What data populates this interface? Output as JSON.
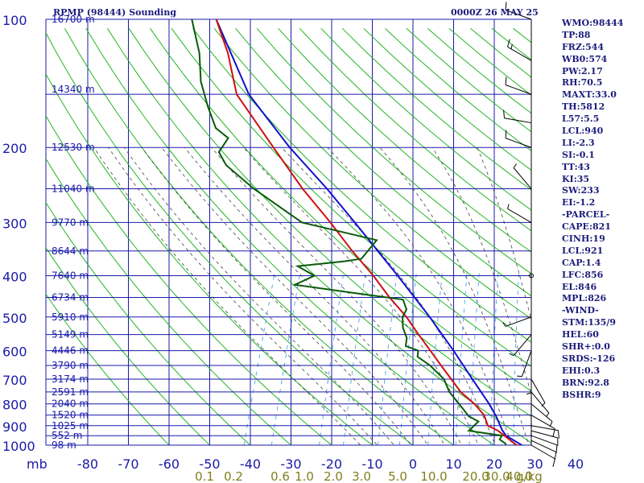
{
  "header": {
    "station": "RPMP (98444) Sounding",
    "time": "0000Z 26 MAY 25"
  },
  "indices": [
    "WMO:98444",
    "TP:88",
    "FRZ:544",
    "WB0:574",
    "PW:2.17",
    "RH:70.5",
    "MAXT:33.0",
    "TH:5812",
    "L57:5.5",
    "LCL:940",
    "LI:-2.3",
    "SI:-0.1",
    "TT:43",
    "KI:35",
    "SW:233",
    "EI:-1.2",
    "-PARCEL-",
    "CAPE:821",
    "CINH:19",
    "LCL:921",
    "CAP:1.4",
    "LFC:856",
    "EL:846",
    "MPL:826",
    "-WIND-",
    "STM:135/9",
    "HEL:60",
    "SHR+:0.0",
    "SRDS:-126",
    "EHI:0.3",
    "BRN:92.8",
    "BSHR:9"
  ],
  "chart_data": {
    "type": "skew-t",
    "pressure_ticks": [
      100,
      200,
      300,
      400,
      500,
      600,
      700,
      800,
      900,
      1000
    ],
    "pressure_label_text": [
      "100",
      "200",
      "300",
      "400",
      "500",
      "600",
      "700",
      "800",
      "900",
      "1000"
    ],
    "temp_ticks": [
      -80,
      -70,
      -60,
      -50,
      -40,
      -30,
      -20,
      -10,
      0,
      10,
      20,
      30,
      40
    ],
    "temp_label_text": [
      "-80",
      "-70",
      "-60",
      "-50",
      "-40",
      "-30",
      "-20",
      "-10",
      "0",
      "10",
      "20",
      "30",
      "40"
    ],
    "axis_unit": "mb",
    "mixing_ratio_labels": [
      "0.1",
      "0.2",
      "0.6",
      "1.0",
      "2.0",
      "3.0",
      "5.0",
      "10.0",
      "20.0",
      "30.0",
      "40.0"
    ],
    "mixing_ratio_unit": "g/kg",
    "height_labels": [
      {
        "p": 100,
        "text": "16700 m"
      },
      {
        "p": 146,
        "text": "14340 m"
      },
      {
        "p": 200,
        "text": "12530 m"
      },
      {
        "p": 250,
        "text": "11040 m"
      },
      {
        "p": 300,
        "text": "9770 m"
      },
      {
        "p": 350,
        "text": "8644 m"
      },
      {
        "p": 400,
        "text": "7640 m"
      },
      {
        "p": 450,
        "text": "6734 m"
      },
      {
        "p": 500,
        "text": "5910 m"
      },
      {
        "p": 550,
        "text": "5149 m"
      },
      {
        "p": 600,
        "text": "4446 m"
      },
      {
        "p": 650,
        "text": "3790 m"
      },
      {
        "p": 700,
        "text": "3174 m"
      },
      {
        "p": 750,
        "text": "2591 m"
      },
      {
        "p": 800,
        "text": "2040 m"
      },
      {
        "p": 850,
        "text": "1520 m"
      },
      {
        "p": 900,
        "text": "1025 m"
      },
      {
        "p": 950,
        "text": "552 m"
      },
      {
        "p": 1000,
        "text": "98 m"
      }
    ],
    "temperature_profile": [
      [
        1008,
        27.5
      ],
      [
        1000,
        25.5
      ],
      [
        950,
        21.6
      ],
      [
        925,
        19.6
      ],
      [
        900,
        16.6
      ],
      [
        850,
        14.7
      ],
      [
        800,
        11.3
      ],
      [
        750,
        6.8
      ],
      [
        700,
        3.3
      ],
      [
        650,
        -0.5
      ],
      [
        600,
        -4.5
      ],
      [
        550,
        -8.9
      ],
      [
        500,
        -13.5
      ],
      [
        450,
        -19.5
      ],
      [
        400,
        -25.5
      ],
      [
        350,
        -33.0
      ],
      [
        300,
        -41.0
      ],
      [
        250,
        -51.0
      ],
      [
        200,
        -62.0
      ],
      [
        150,
        -76.0
      ],
      [
        120,
        -82.0
      ],
      [
        100,
        -88.0
      ]
    ],
    "dewpoint_profile": [
      [
        1008,
        23.2
      ],
      [
        990,
        22.5
      ],
      [
        970,
        20.8
      ],
      [
        950,
        21.0
      ],
      [
        925,
        12.4
      ],
      [
        880,
        13.9
      ],
      [
        855,
        11.0
      ],
      [
        800,
        7.5
      ],
      [
        750,
        4.0
      ],
      [
        700,
        1.5
      ],
      [
        650,
        -3.2
      ],
      [
        620,
        -7.1
      ],
      [
        600,
        -7.5
      ],
      [
        585,
        -11.0
      ],
      [
        560,
        -11.5
      ],
      [
        530,
        -13.4
      ],
      [
        500,
        -14.5
      ],
      [
        480,
        -14.2
      ],
      [
        455,
        -16.0
      ],
      [
        440,
        -28.0
      ],
      [
        420,
        -44.0
      ],
      [
        400,
        -40.0
      ],
      [
        380,
        -45.0
      ],
      [
        370,
        -34.0
      ],
      [
        365,
        -30.0
      ],
      [
        330,
        -28.0
      ],
      [
        300,
        -48.0
      ],
      [
        250,
        -63.0
      ],
      [
        220,
        -72.0
      ],
      [
        205,
        -75.0
      ],
      [
        190,
        -74.0
      ],
      [
        180,
        -78.0
      ],
      [
        160,
        -82.0
      ],
      [
        140,
        -86.0
      ],
      [
        120,
        -89.0
      ],
      [
        100,
        -94.0
      ]
    ],
    "parcel_path": [
      [
        1008,
        27.5
      ],
      [
        950,
        22.0
      ],
      [
        921,
        20.5
      ],
      [
        856,
        17.8
      ],
      [
        800,
        14.9
      ],
      [
        700,
        8.5
      ],
      [
        600,
        1.2
      ],
      [
        500,
        -7.8
      ],
      [
        400,
        -19.5
      ],
      [
        300,
        -35.0
      ],
      [
        250,
        -45.0
      ],
      [
        200,
        -58.0
      ],
      [
        150,
        -73.0
      ],
      [
        100,
        -88.0
      ]
    ],
    "wind_barbs": [
      {
        "p": 1000,
        "dir": 120,
        "spd": 10
      },
      {
        "p": 975,
        "dir": 115,
        "spd": 10
      },
      {
        "p": 950,
        "dir": 110,
        "spd": 10
      },
      {
        "p": 925,
        "dir": 105,
        "spd": 10
      },
      {
        "p": 900,
        "dir": 100,
        "spd": 10
      },
      {
        "p": 850,
        "dir": 120,
        "spd": 10
      },
      {
        "p": 800,
        "dir": 130,
        "spd": 5
      },
      {
        "p": 750,
        "dir": 140,
        "spd": 5
      },
      {
        "p": 700,
        "dir": 150,
        "spd": 5
      },
      {
        "p": 650,
        "dir": 180,
        "spd": 5
      },
      {
        "p": 600,
        "dir": 200,
        "spd": 5
      },
      {
        "p": 550,
        "dir": 220,
        "spd": 5
      },
      {
        "p": 500,
        "dir": 250,
        "spd": 5
      },
      {
        "p": 400,
        "dir": 0,
        "spd": 0
      },
      {
        "p": 300,
        "dir": 300,
        "spd": 5
      },
      {
        "p": 250,
        "dir": 320,
        "spd": 5
      },
      {
        "p": 200,
        "dir": 290,
        "spd": 10
      },
      {
        "p": 175,
        "dir": 280,
        "spd": 10
      },
      {
        "p": 150,
        "dir": 290,
        "spd": 10
      },
      {
        "p": 125,
        "dir": 300,
        "spd": 15
      },
      {
        "p": 100,
        "dir": 290,
        "spd": 10
      }
    ],
    "colors": {
      "grid": "#1a1aa8",
      "dry_adiabat": "#22b522",
      "moist_adiabat": "#444444",
      "mixing_ratio": "#3399ee",
      "temperature": "#cc1111",
      "dewpoint": "#0a5a0a",
      "parcel": "#1111cc",
      "label": "#1c1c7c",
      "mr_label": "#808020",
      "wind": "#000000"
    }
  }
}
